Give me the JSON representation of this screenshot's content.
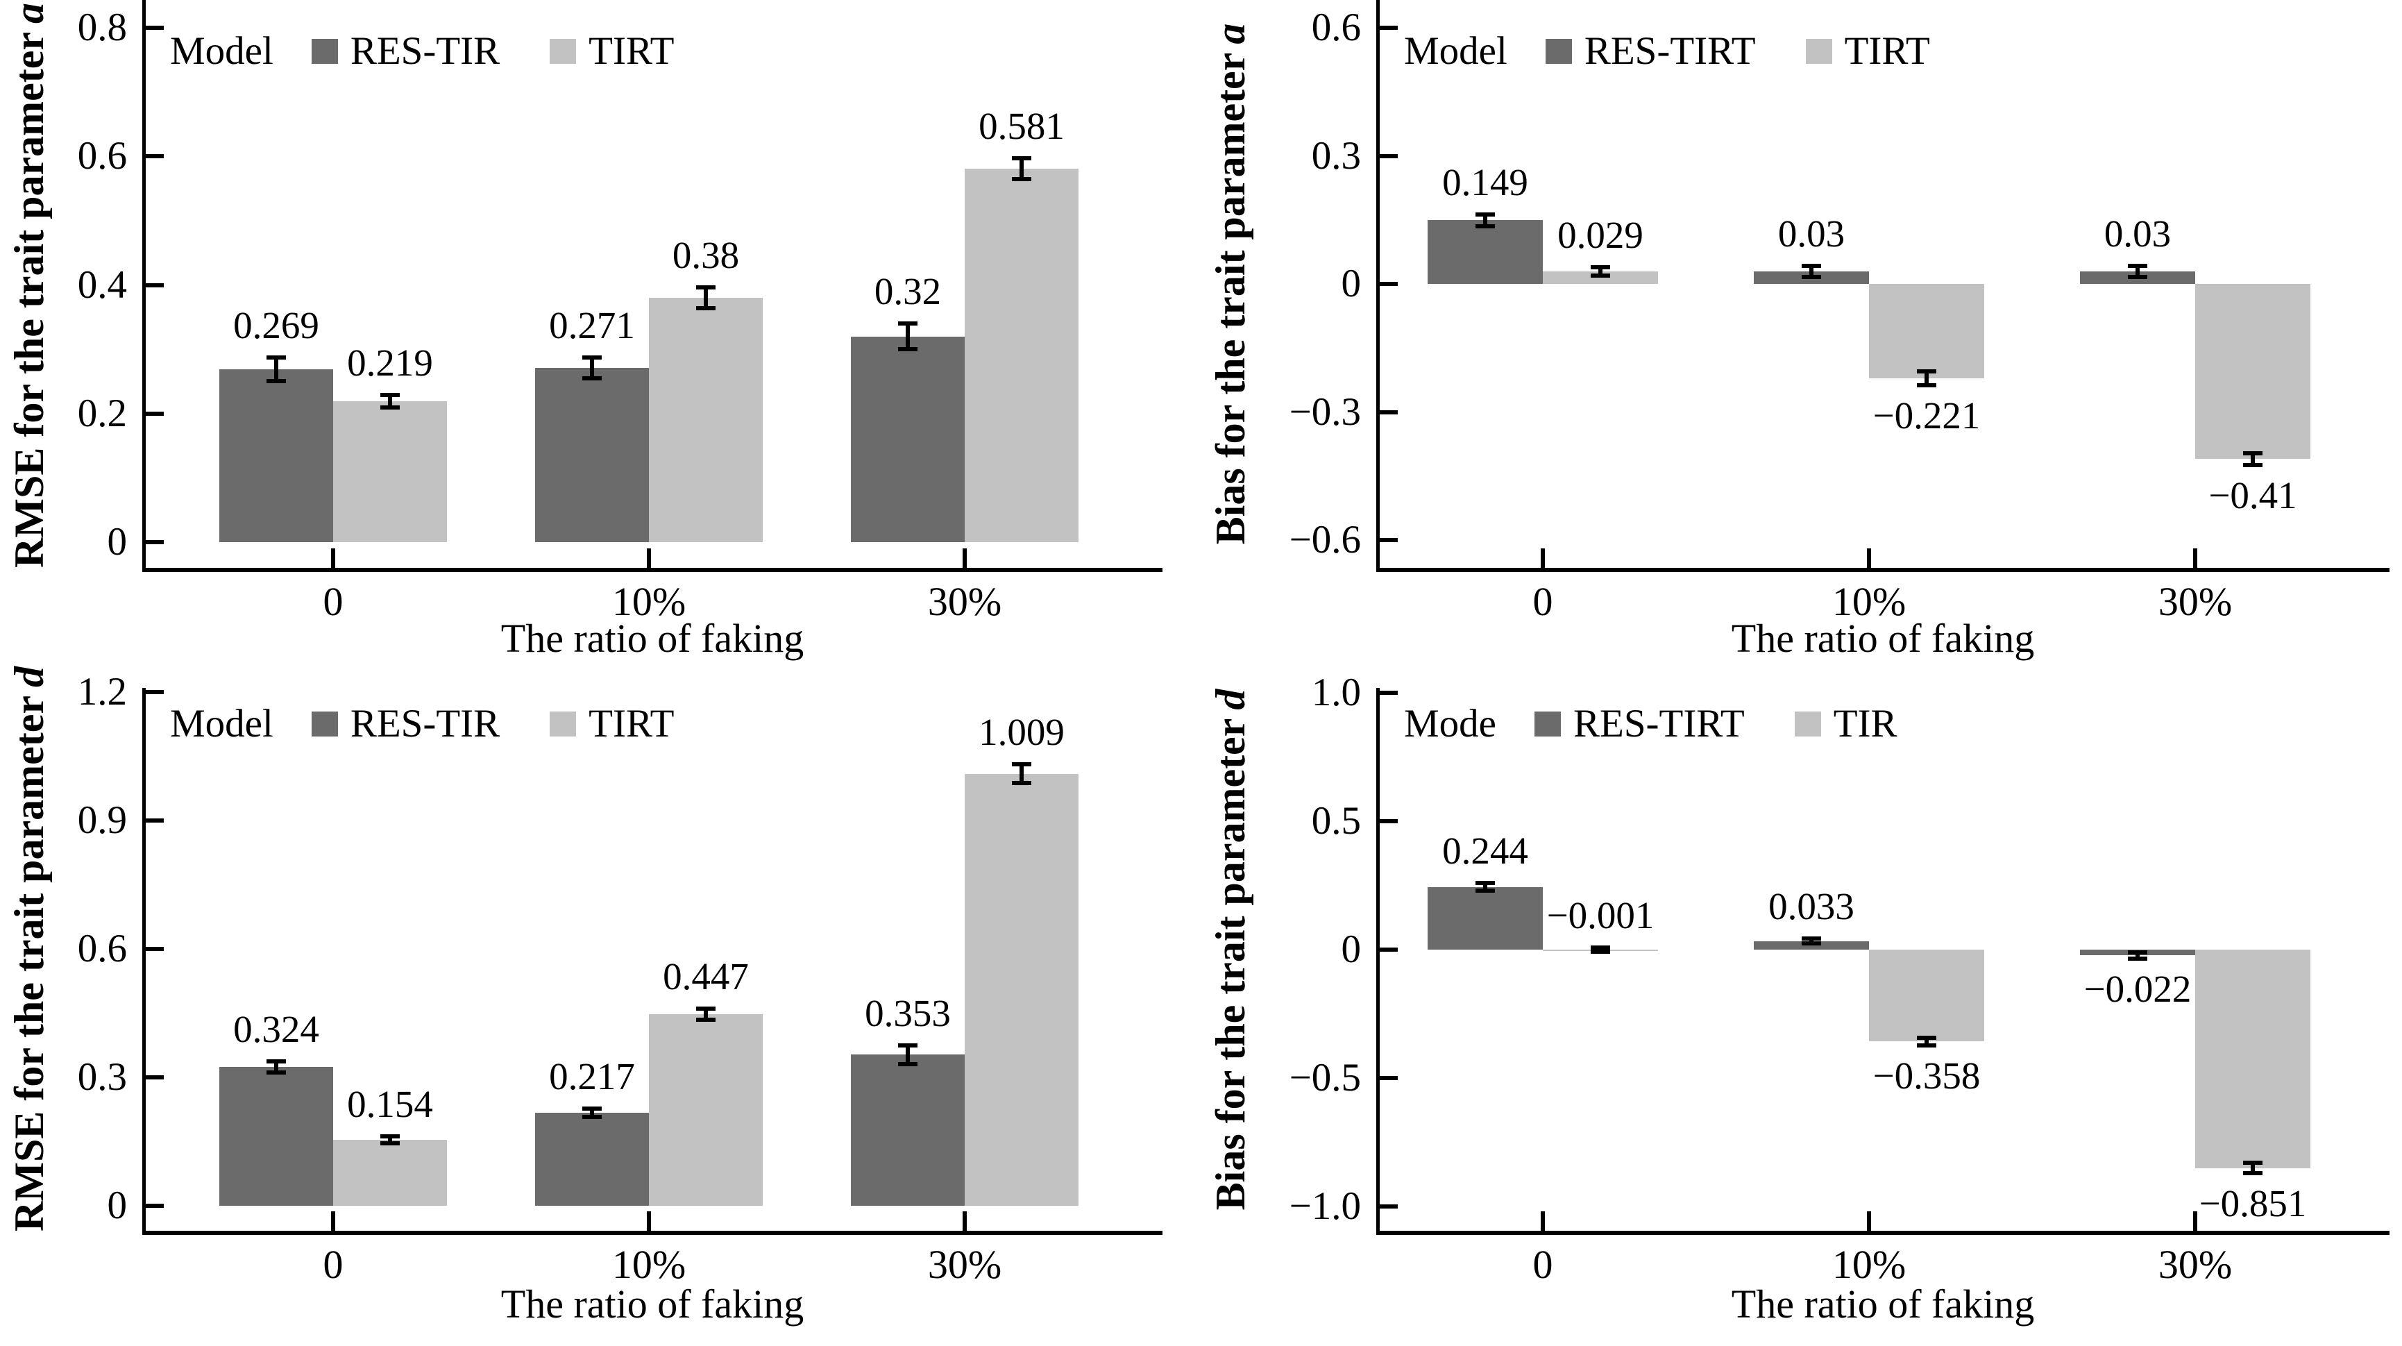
{
  "figure": {
    "background": "#ffffff",
    "colors": {
      "dark_series": "#6b6b6b",
      "light_series": "#c2c2c2",
      "axis": "#000000",
      "text": "#000000"
    }
  },
  "chart_data": [
    {
      "type": "bar",
      "position": "top-left",
      "ylabel_prefix": "RMSE for the trait parameter",
      "ylabel_var": "a",
      "xlabel": "The ratio of faking",
      "categories": [
        "0",
        "10%",
        "30%"
      ],
      "ylim": [
        0,
        0.8
      ],
      "yticks": [
        {
          "label": "0",
          "value": 0
        },
        {
          "label": "0.2",
          "value": 0.2
        },
        {
          "label": "0.4",
          "value": 0.4
        },
        {
          "label": "0.6",
          "value": 0.6
        },
        {
          "label": "0.8",
          "value": 0.8
        }
      ],
      "legend_title": "Model",
      "legend_position": "top-left-inside",
      "grid": false,
      "series": [
        {
          "name": "RES-TIR",
          "color_key": "dark_series",
          "values": [
            0.269,
            0.271,
            0.32
          ],
          "value_labels": [
            "0.269",
            "0.271",
            "0.32"
          ],
          "errors": [
            0.018,
            0.016,
            0.02
          ],
          "label_side": [
            "above",
            "above",
            "above"
          ]
        },
        {
          "name": "TIRT",
          "color_key": "light_series",
          "values": [
            0.219,
            0.38,
            0.581
          ],
          "value_labels": [
            "0.219",
            "0.38",
            "0.581"
          ],
          "errors": [
            0.01,
            0.016,
            0.016
          ],
          "label_side": [
            "above",
            "above",
            "above"
          ]
        }
      ]
    },
    {
      "type": "bar",
      "position": "top-right",
      "ylabel_prefix": "Bias for the trait parameter",
      "ylabel_var": "a",
      "xlabel": "The ratio of faking",
      "categories": [
        "0",
        "10%",
        "30%"
      ],
      "ylim": [
        -0.6,
        0.6
      ],
      "yticks": [
        {
          "label": "−0.6",
          "value": -0.6
        },
        {
          "label": "−0.3",
          "value": -0.3
        },
        {
          "label": "0",
          "value": 0
        },
        {
          "label": "0.3",
          "value": 0.3
        },
        {
          "label": "0.6",
          "value": 0.6
        }
      ],
      "legend_title": "Model",
      "legend_position": "top-left-inside",
      "grid": false,
      "series": [
        {
          "name": "RES-TIRT",
          "color_key": "dark_series",
          "values": [
            0.149,
            0.03,
            0.03
          ],
          "value_labels": [
            "0.149",
            "0.03",
            "0.03"
          ],
          "errors": [
            0.014,
            0.013,
            0.013
          ],
          "label_side": [
            "above",
            "above",
            "above"
          ]
        },
        {
          "name": "TIRT",
          "color_key": "light_series",
          "values": [
            0.029,
            -0.221,
            -0.41
          ],
          "value_labels": [
            "0.029",
            "−0.221",
            "−0.41"
          ],
          "errors": [
            0.01,
            0.016,
            0.014
          ],
          "label_side": [
            "above",
            "below",
            "below"
          ]
        }
      ]
    },
    {
      "type": "bar",
      "position": "bottom-left",
      "ylabel_prefix": "RMSE for the trait parameter",
      "ylabel_var": "d",
      "xlabel": "The ratio of faking",
      "categories": [
        "0",
        "10%",
        "30%"
      ],
      "ylim": [
        0,
        1.2
      ],
      "yticks": [
        {
          "label": "0",
          "value": 0
        },
        {
          "label": "0.3",
          "value": 0.3
        },
        {
          "label": "0.6",
          "value": 0.6
        },
        {
          "label": "0.9",
          "value": 0.9
        },
        {
          "label": "1.2",
          "value": 1.2
        }
      ],
      "legend_title": "Model",
      "legend_position": "top-left-inside",
      "grid": false,
      "series": [
        {
          "name": "RES-TIR",
          "color_key": "dark_series",
          "values": [
            0.324,
            0.217,
            0.353
          ],
          "value_labels": [
            "0.324",
            "0.217",
            "0.353"
          ],
          "errors": [
            0.013,
            0.01,
            0.022
          ],
          "label_side": [
            "above",
            "above",
            "above"
          ]
        },
        {
          "name": "TIRT",
          "color_key": "light_series",
          "values": [
            0.154,
            0.447,
            1.009
          ],
          "value_labels": [
            "0.154",
            "0.447",
            "1.009"
          ],
          "errors": [
            0.008,
            0.013,
            0.022
          ],
          "label_side": [
            "above",
            "above",
            "above"
          ]
        }
      ]
    },
    {
      "type": "bar",
      "position": "bottom-right",
      "ylabel_prefix": "Bias for the trait parameter",
      "ylabel_var": "d",
      "xlabel": "The ratio of faking",
      "categories": [
        "0",
        "10%",
        "30%"
      ],
      "ylim": [
        -1.0,
        1.0
      ],
      "yticks": [
        {
          "label": "−1.0",
          "value": -1.0
        },
        {
          "label": "−0.5",
          "value": -0.5
        },
        {
          "label": "0",
          "value": 0
        },
        {
          "label": "0.5",
          "value": 0.5
        },
        {
          "label": "1.0",
          "value": 1.0
        }
      ],
      "legend_title": "Mode",
      "legend_position": "top-left-inside",
      "grid": false,
      "series": [
        {
          "name": "RES-TIRT",
          "color_key": "dark_series",
          "values": [
            0.244,
            0.033,
            -0.022
          ],
          "value_labels": [
            "0.244",
            "0.033",
            "−0.022"
          ],
          "errors": [
            0.015,
            0.01,
            0.012
          ],
          "label_side": [
            "above",
            "above",
            "below"
          ]
        },
        {
          "name": "TIR",
          "color_key": "light_series",
          "values": [
            -0.001,
            -0.358,
            -0.851
          ],
          "value_labels": [
            "−0.001",
            "−0.358",
            "−0.851"
          ],
          "errors": [
            0.008,
            0.015,
            0.02
          ],
          "label_side": [
            "above",
            "below",
            "below"
          ]
        }
      ]
    }
  ]
}
